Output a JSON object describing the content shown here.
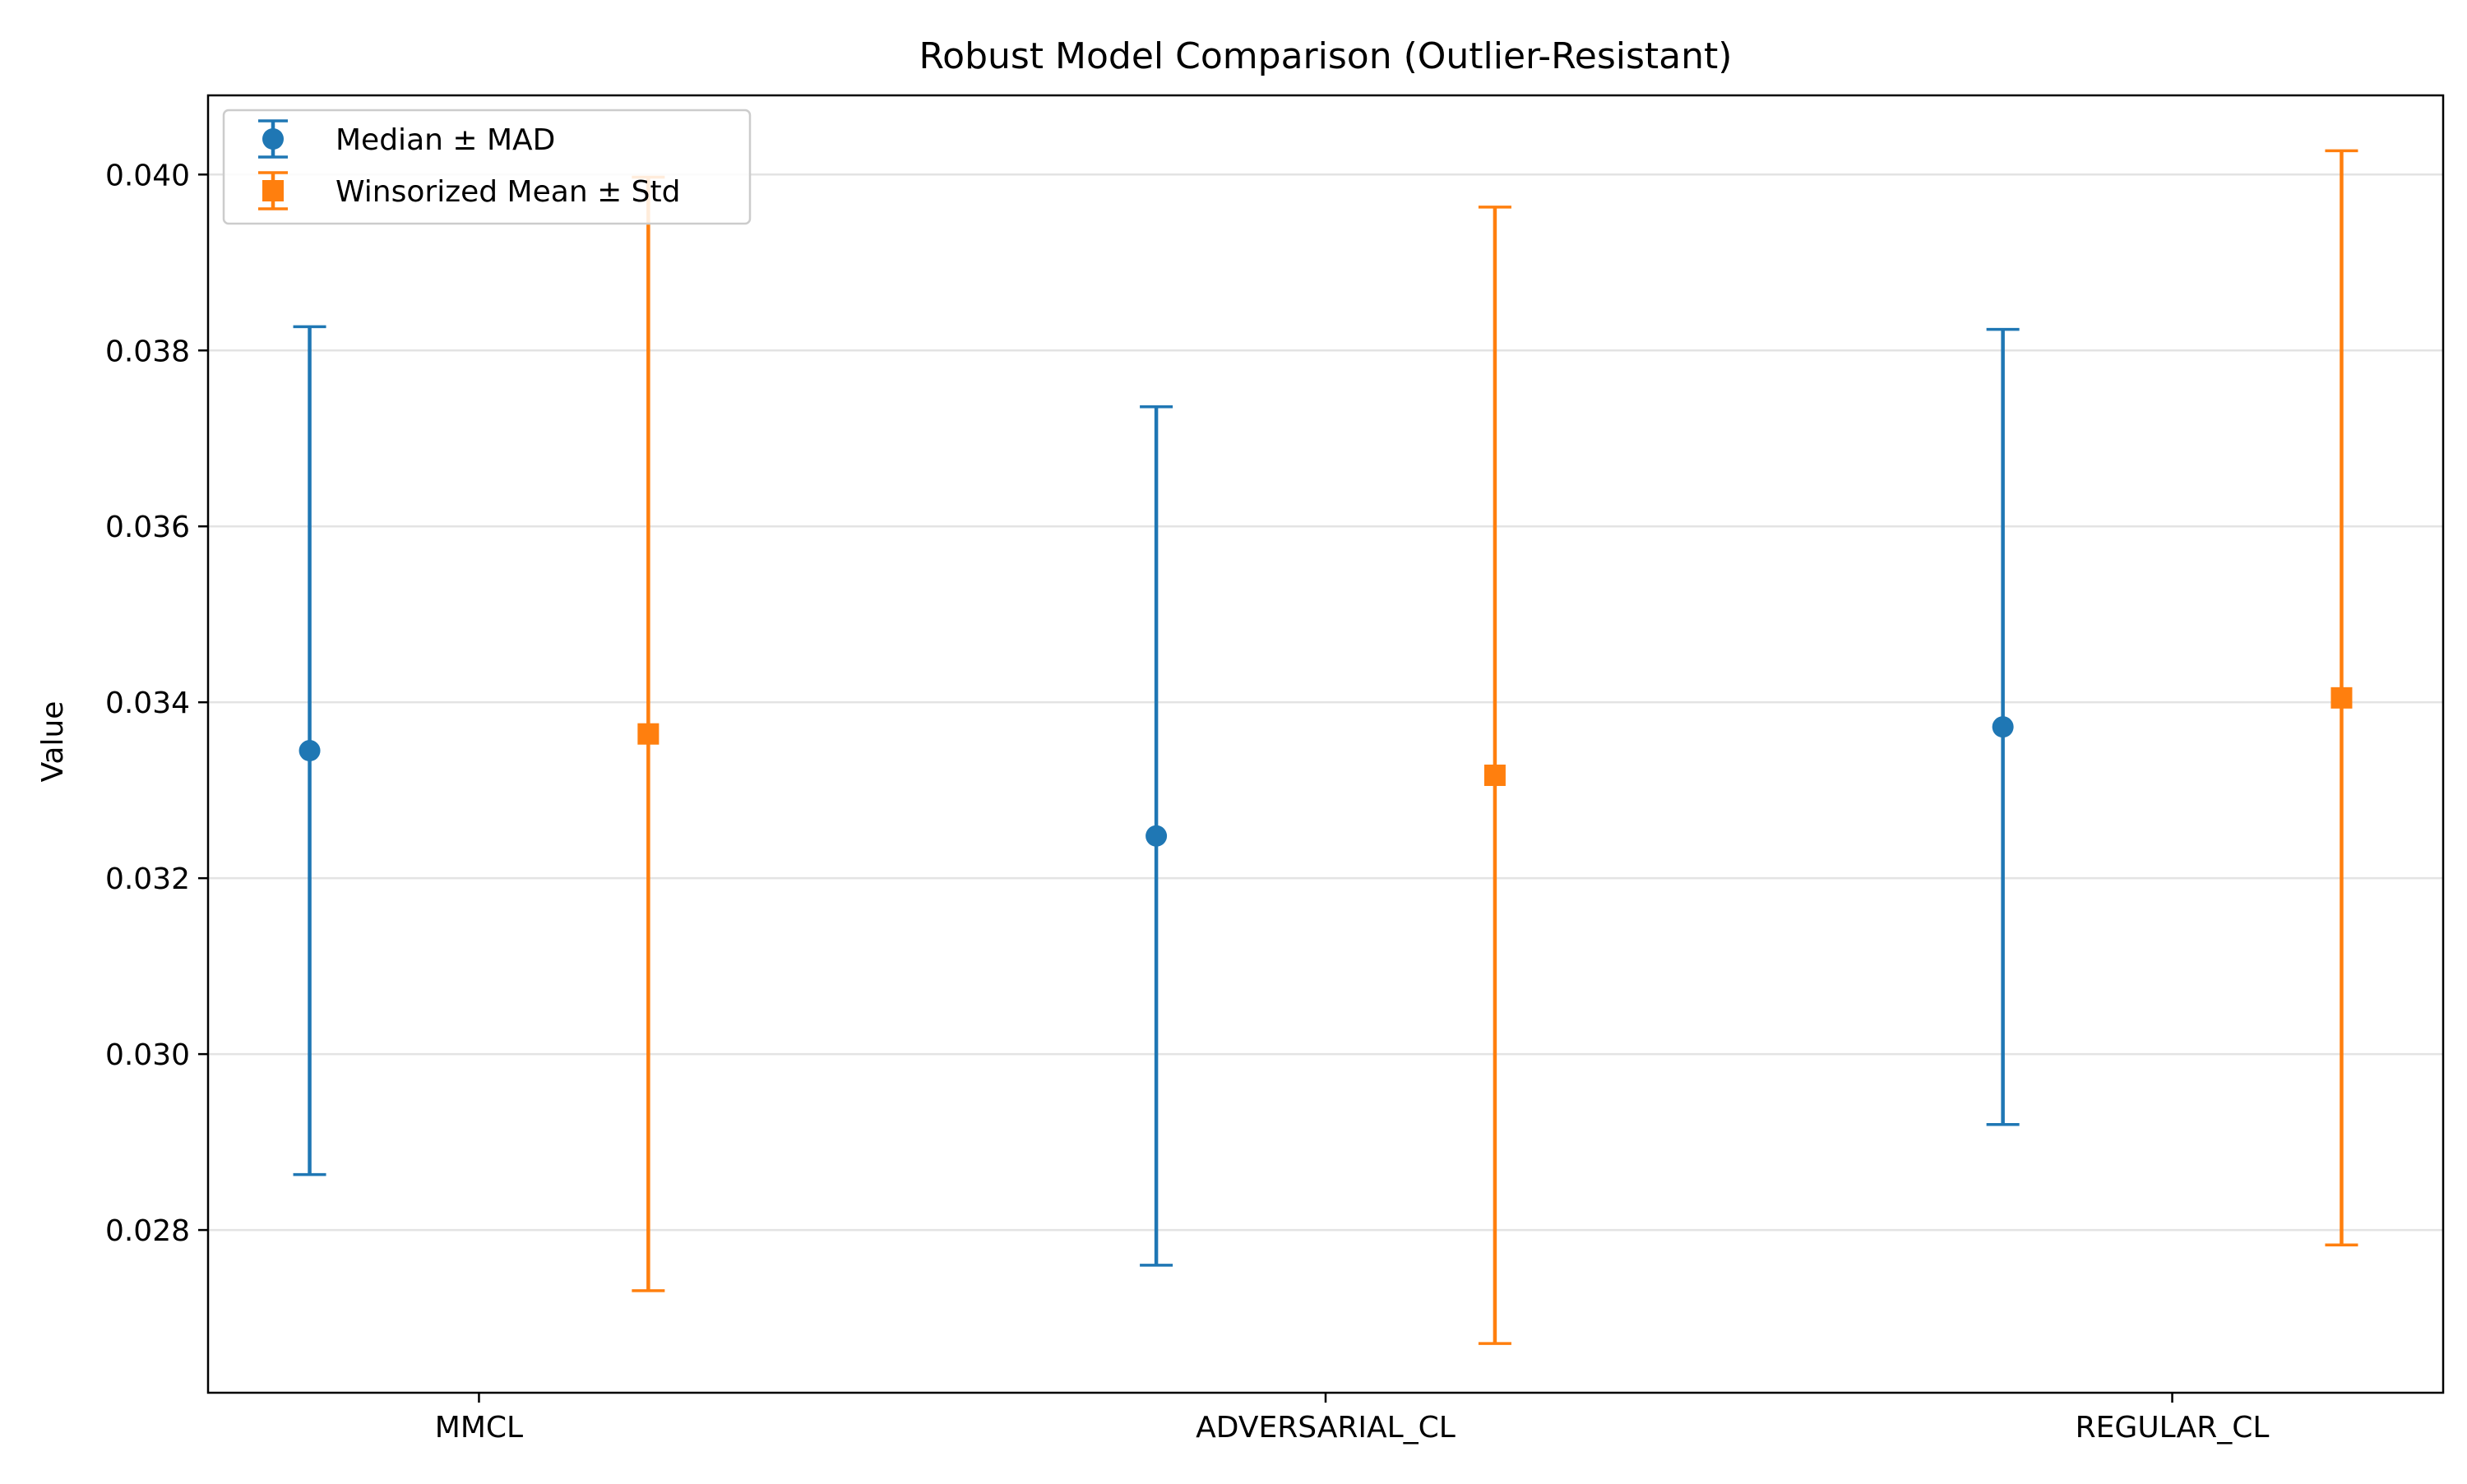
{
  "chart_data": {
    "type": "errorbar",
    "title": "Robust Model Comparison (Outlier-Resistant)",
    "xlabel": "",
    "ylabel": "Value",
    "categories": [
      "MMCL",
      "ADVERSARIAL_CL",
      "REGULAR_CL"
    ],
    "ylim": [
      0.02615,
      0.0409
    ],
    "yticks": [
      0.028,
      0.03,
      0.032,
      0.034,
      0.036,
      0.038,
      0.04
    ],
    "ytick_labels": [
      "0.028",
      "0.030",
      "0.032",
      "0.034",
      "0.036",
      "0.038",
      "0.040"
    ],
    "grid": "horizontal",
    "legend_position": "top-left",
    "series": [
      {
        "name": "Median ± MAD",
        "marker": "circle",
        "color": "#1f77b4",
        "offset": -0.2,
        "values": [
          0.03345,
          0.03248,
          0.03372
        ],
        "errors": [
          0.00482,
          0.00488,
          0.00452
        ]
      },
      {
        "name": "Winsorized Mean ± Std",
        "marker": "square",
        "color": "#ff7f0e",
        "offset": 0.2,
        "values": [
          0.03364,
          0.03317,
          0.03405
        ],
        "errors": [
          0.00633,
          0.00646,
          0.00622
        ]
      }
    ]
  }
}
